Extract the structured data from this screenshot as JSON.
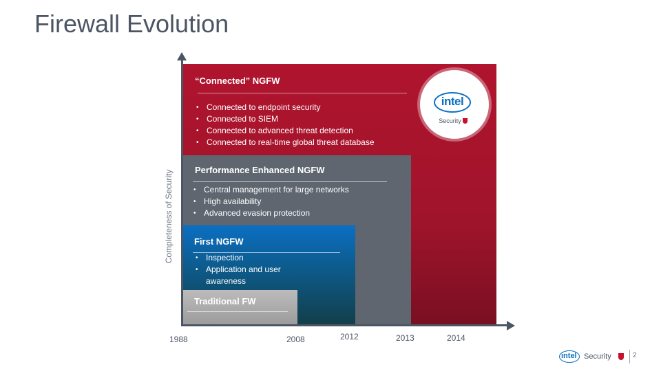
{
  "title": "Firewall Evolution",
  "y_axis_label": "Completeness of Security",
  "blocks": {
    "connected": {
      "title": "“Connected” NGFW",
      "bullets": [
        "Connected to endpoint security",
        "Connected to SIEM",
        "Connected to advanced threat detection",
        "Connected to real-time global threat database"
      ],
      "color": "#b0142e"
    },
    "performance": {
      "title": "Performance Enhanced NGFW",
      "bullets": [
        "Central management  for large networks",
        "High availability",
        "Advanced evasion protection"
      ],
      "color": "#5f6670"
    },
    "first": {
      "title": "First NGFW",
      "bullets": [
        "Inspection",
        "Application and user awareness"
      ],
      "color": "#0b6fc2"
    },
    "traditional": {
      "title": "Traditional FW",
      "color": "#a8a8a8"
    }
  },
  "years": [
    "1988",
    "2008",
    "2012",
    "2013",
    "2014"
  ],
  "logo": {
    "intel": "intel",
    "security": "Security"
  },
  "footer": {
    "intel": "intel",
    "security": "Security",
    "page_number": "2"
  }
}
